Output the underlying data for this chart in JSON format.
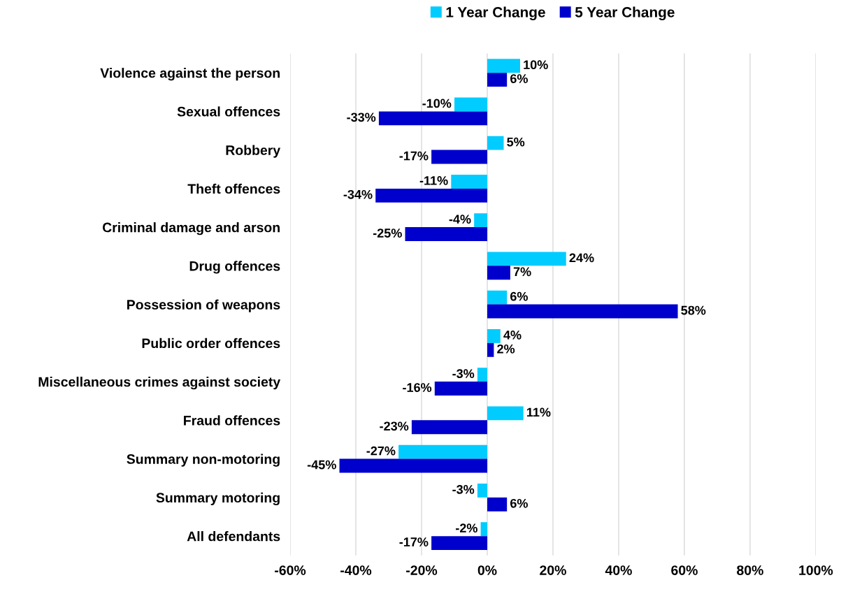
{
  "chart_data": {
    "type": "bar",
    "orientation": "horizontal",
    "categories": [
      "Violence against the person",
      "Sexual offences",
      "Robbery",
      "Theft offences",
      "Criminal damage and arson",
      "Drug offences",
      "Possession of weapons",
      "Public order offences",
      "Miscellaneous crimes against society",
      "Fraud offences",
      "Summary non-motoring",
      "Summary motoring",
      "All defendants"
    ],
    "series": [
      {
        "name": "1 Year Change",
        "color": "#00ccff",
        "values": [
          10,
          -10,
          5,
          -11,
          -4,
          24,
          6,
          4,
          -3,
          11,
          -27,
          -3,
          -2
        ],
        "value_labels": [
          "10%",
          "-10%",
          "5%",
          "-11%",
          "-4%",
          "24%",
          "6%",
          "4%",
          "-3%",
          "11%",
          "-27%",
          "-3%",
          "-2%"
        ]
      },
      {
        "name": "5 Year Change",
        "color": "#0000cc",
        "values": [
          6,
          -33,
          -17,
          -34,
          -25,
          7,
          58,
          2,
          -16,
          -23,
          -45,
          6,
          -17
        ],
        "value_labels": [
          "6%",
          "-33%",
          "-17%",
          "-34%",
          "-25%",
          "7%",
          "58%",
          "2%",
          "-16%",
          "-23%",
          "-45%",
          "6%",
          "-17%"
        ]
      }
    ],
    "xlim": [
      -60,
      100
    ],
    "xticks": [
      {
        "value": -60,
        "label": "-60%"
      },
      {
        "value": -40,
        "label": "-40%"
      },
      {
        "value": -20,
        "label": "-20%"
      },
      {
        "value": 0,
        "label": "0%"
      },
      {
        "value": 20,
        "label": "20%"
      },
      {
        "value": 40,
        "label": "40%"
      },
      {
        "value": 60,
        "label": "60%"
      },
      {
        "value": 80,
        "label": "80%"
      },
      {
        "value": 100,
        "label": "100%"
      }
    ],
    "grid": "x",
    "legend": "top"
  }
}
